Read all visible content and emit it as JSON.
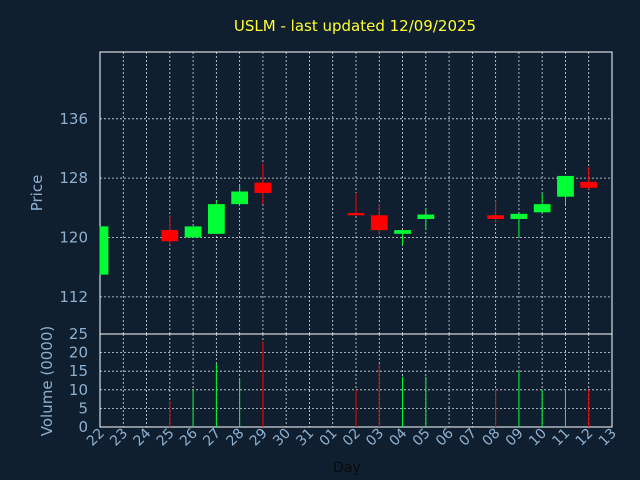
{
  "chart_data": {
    "type": "candlestick",
    "title": "USLM - last updated 12/09/2025",
    "xlabel": "Day",
    "price_panel": {
      "ylabel": "Price",
      "ylim": [
        107,
        145
      ],
      "yticks": [
        112,
        120,
        128,
        136
      ],
      "grid": true
    },
    "volume_panel": {
      "ylabel": "Volume (0000)",
      "ylim": [
        0,
        25
      ],
      "yticks": [
        0,
        5,
        10,
        15,
        20,
        25
      ],
      "grid": true
    },
    "x_labels": [
      "22",
      "23",
      "24",
      "25",
      "26",
      "27",
      "28",
      "29",
      "30",
      "31",
      "01",
      "02",
      "03",
      "04",
      "05",
      "06",
      "07",
      "08",
      "09",
      "10",
      "11",
      "12",
      "13"
    ],
    "colors": {
      "up": "#00ff33",
      "down": "#ff0000"
    },
    "candles": [
      {
        "day": "22",
        "open": 115.0,
        "close": 121.5,
        "high": 121.5,
        "low": 115.0,
        "volume": 0
      },
      {
        "day": "25",
        "open": 121.0,
        "close": 119.5,
        "high": 123.0,
        "low": 119.0,
        "volume": 7
      },
      {
        "day": "26",
        "open": 120.0,
        "close": 121.5,
        "high": 121.5,
        "low": 120.0,
        "volume": 10
      },
      {
        "day": "27",
        "open": 120.5,
        "close": 124.5,
        "high": 125.0,
        "low": 120.5,
        "volume": 17
      },
      {
        "day": "28",
        "open": 124.5,
        "close": 126.2,
        "high": 127.0,
        "low": 124.5,
        "volume": 13
      },
      {
        "day": "29",
        "open": 127.4,
        "close": 126.0,
        "high": 130.0,
        "low": 124.5,
        "volume": 23
      },
      {
        "day": "02",
        "open": 123.3,
        "close": 123.0,
        "high": 126.0,
        "low": 123.0,
        "volume": 10
      },
      {
        "day": "03",
        "open": 123.0,
        "close": 121.0,
        "high": 124.5,
        "low": 120.5,
        "volume": 17
      },
      {
        "day": "04",
        "open": 120.5,
        "close": 121.0,
        "high": 121.0,
        "low": 119.0,
        "volume": 13.5
      },
      {
        "day": "05",
        "open": 122.5,
        "close": 123.1,
        "high": 124.0,
        "low": 121.0,
        "volume": 13.5
      },
      {
        "day": "08",
        "open": 123.0,
        "close": 122.5,
        "high": 125.0,
        "low": 122.0,
        "volume": 10
      },
      {
        "day": "09",
        "open": 122.5,
        "close": 123.2,
        "high": 123.2,
        "low": 120.0,
        "volume": 15
      },
      {
        "day": "10",
        "open": 123.4,
        "close": 124.5,
        "high": 126.0,
        "low": 123.4,
        "volume": 10
      },
      {
        "day": "11",
        "open": 125.5,
        "close": 128.3,
        "high": 128.3,
        "low": 124.5,
        "volume": 10
      },
      {
        "day": "12",
        "open": 127.5,
        "close": 126.7,
        "high": 129.5,
        "low": 126.5,
        "volume": 10
      }
    ]
  }
}
